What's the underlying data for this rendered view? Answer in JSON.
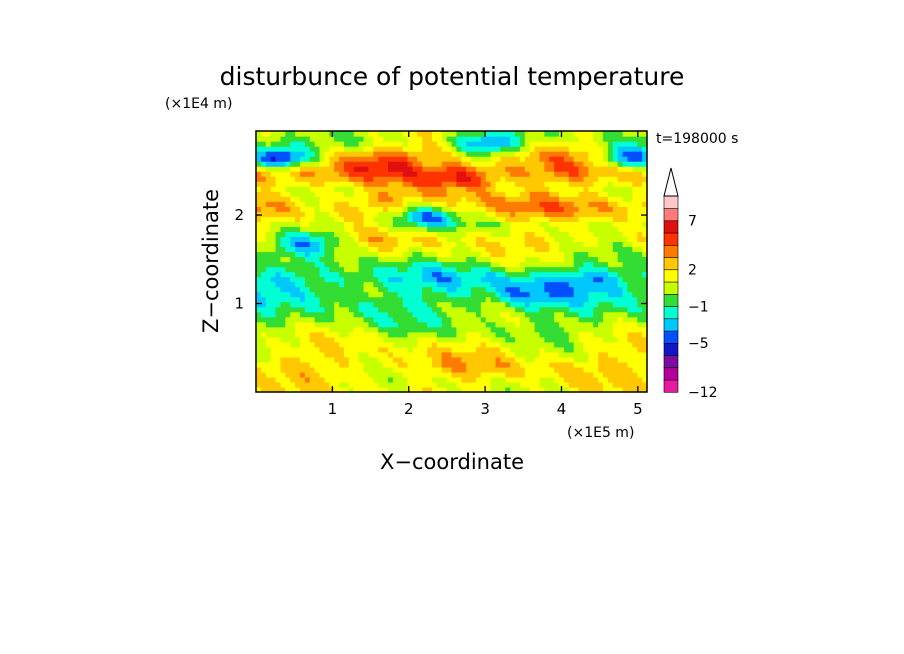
{
  "chart_data": {
    "type": "heatmap",
    "title": "disturbunce of potential temperature",
    "xlabel": "X−coordinate",
    "ylabel": "Z−coordinate",
    "x_scale_label": "(×1E5 m)",
    "y_scale_label": "(×1E4 m)",
    "time_label": "t=198000 s",
    "xlim": [
      0,
      5.12
    ],
    "ylim": [
      0,
      2.95
    ],
    "x_ticks": [
      1,
      2,
      3,
      4,
      5
    ],
    "x_tick_labels": [
      "1",
      "2",
      "3",
      "4",
      "5"
    ],
    "y_ticks": [
      1,
      2
    ],
    "y_tick_labels": [
      "1",
      "2"
    ],
    "colorbar": {
      "levels": [
        -12,
        -5,
        -1,
        2,
        7
      ],
      "level_labels": [
        "−12",
        "−5",
        "−1",
        "2",
        "7"
      ],
      "colors": [
        "#e6199f",
        "#b3009b",
        "#7a0ca0",
        "#1414c8",
        "#0050ff",
        "#00c8ff",
        "#00ffd2",
        "#33dd33",
        "#c8ff00",
        "#ffff00",
        "#ffc800",
        "#ff7a00",
        "#ff3300",
        "#e01010",
        "#ff7a7a",
        "#ffc8c8"
      ],
      "extend": "max"
    },
    "grid": false,
    "bands": [
      {
        "z": 0.1,
        "value": 1.5
      },
      {
        "z": 0.3,
        "value": 2.5
      },
      {
        "z": 0.5,
        "value": 1.5
      },
      {
        "z": 0.7,
        "value": 0.0
      },
      {
        "z": 0.9,
        "value": -1.0
      },
      {
        "z": 1.1,
        "value": -2.0
      },
      {
        "z": 1.3,
        "value": -3.0
      },
      {
        "z": 1.5,
        "value": 0.0
      },
      {
        "z": 1.7,
        "value": 2.0
      },
      {
        "z": 1.9,
        "value": 1.0
      },
      {
        "z": 2.1,
        "value": 4.0
      },
      {
        "z": 2.3,
        "value": 2.0
      },
      {
        "z": 2.5,
        "value": 4.5
      },
      {
        "z": 2.7,
        "value": 3.0
      },
      {
        "z": 2.85,
        "value": 0.5
      }
    ],
    "features": [
      {
        "x": 0.3,
        "z": 2.65,
        "value": -8
      },
      {
        "x": 3.55,
        "z": 1.1,
        "value": -5
      },
      {
        "x": 4.4,
        "z": 1.25,
        "value": -4
      },
      {
        "x": 4.9,
        "z": 2.65,
        "value": -5
      },
      {
        "x": 1.6,
        "z": 2.6,
        "value": 7
      },
      {
        "x": 2.7,
        "z": 2.4,
        "value": 7
      },
      {
        "x": 0.8,
        "z": 2.1,
        "value": 3
      },
      {
        "x": 3.0,
        "z": 2.8,
        "value": -5
      },
      {
        "x": 2.2,
        "z": 2.0,
        "value": -4
      },
      {
        "x": 0.7,
        "z": 1.7,
        "value": -3
      },
      {
        "x": 1.5,
        "z": 0.4,
        "value": 2
      },
      {
        "x": 4.4,
        "z": 2.1,
        "value": 4
      }
    ]
  }
}
